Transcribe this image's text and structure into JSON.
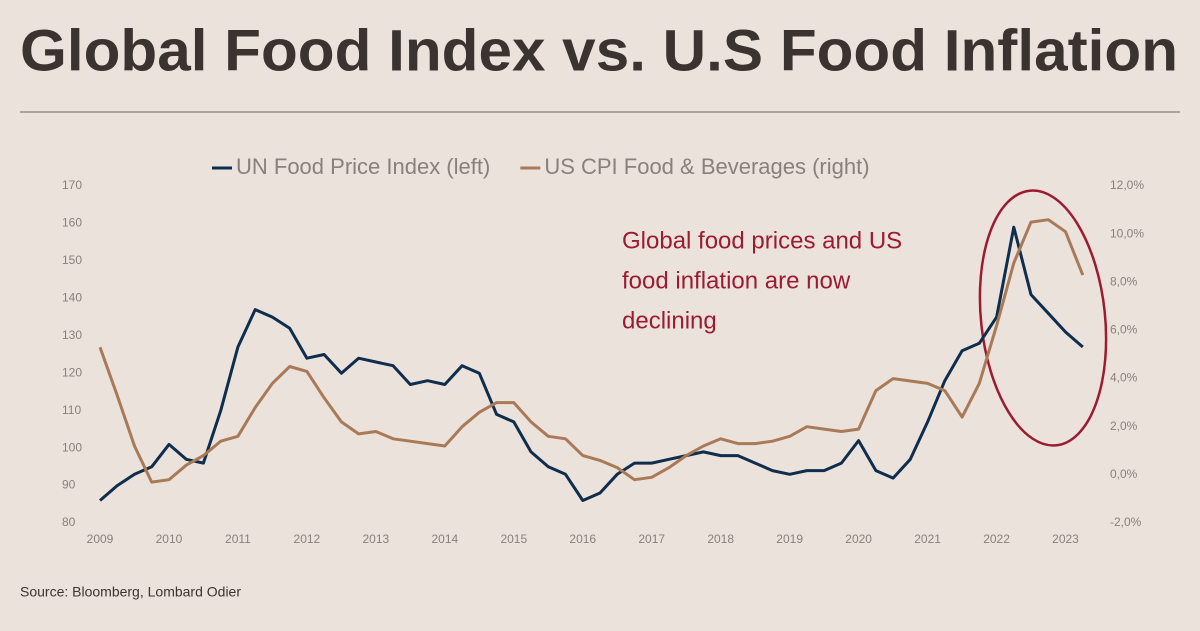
{
  "chart_data": {
    "type": "line",
    "title": "Global Food Index vs. U.S Food Inflation",
    "source": "Source: Bloomberg, Lombard Odier",
    "annotation": [
      "Global food prices and US",
      "food inflation are now",
      "declining"
    ],
    "x": [
      2009,
      2009.25,
      2009.5,
      2009.75,
      2010,
      2010.25,
      2010.5,
      2010.75,
      2011,
      2011.25,
      2011.5,
      2011.75,
      2012,
      2012.25,
      2012.5,
      2012.75,
      2013,
      2013.25,
      2013.5,
      2013.75,
      2014,
      2014.25,
      2014.5,
      2014.75,
      2015,
      2015.25,
      2015.5,
      2015.75,
      2016,
      2016.25,
      2016.5,
      2016.75,
      2017,
      2017.25,
      2017.5,
      2017.75,
      2018,
      2018.25,
      2018.5,
      2018.75,
      2019,
      2019.25,
      2019.5,
      2019.75,
      2020,
      2020.25,
      2020.5,
      2020.75,
      2021,
      2021.25,
      2021.5,
      2021.75,
      2022,
      2022.25,
      2022.5,
      2022.75,
      2023,
      2023.25
    ],
    "xlim": [
      2009,
      2023.5
    ],
    "xticks": [
      2009,
      2010,
      2011,
      2012,
      2013,
      2014,
      2015,
      2016,
      2017,
      2018,
      2019,
      2020,
      2021,
      2022,
      2023
    ],
    "ylim": [
      80,
      170
    ],
    "yticks": [
      80,
      90,
      100,
      110,
      120,
      130,
      140,
      150,
      160,
      170
    ],
    "y2lim": [
      -2,
      12
    ],
    "y2ticks": [
      {
        "value": -2,
        "label": "-2,0%"
      },
      {
        "value": 0,
        "label": "0,0%"
      },
      {
        "value": 2,
        "label": "2,0%"
      },
      {
        "value": 4,
        "label": "4,0%"
      },
      {
        "value": 6,
        "label": "6,0%"
      },
      {
        "value": 8,
        "label": "8,0%"
      },
      {
        "value": 10,
        "label": "10,0%"
      },
      {
        "value": 12,
        "label": "12,0%"
      }
    ],
    "series": [
      {
        "name": "UN Food Price Index (left)",
        "color": "#0f2d4d",
        "values": [
          86,
          90,
          93,
          95,
          101,
          97,
          96,
          110,
          127,
          137,
          135,
          132,
          124,
          125,
          120,
          124,
          123,
          122,
          117,
          118,
          117,
          122,
          120,
          109,
          107,
          99,
          95,
          93,
          86,
          88,
          93,
          96,
          96,
          97,
          98,
          99,
          98,
          98,
          96,
          94,
          93,
          94,
          94,
          96,
          102,
          94,
          92,
          97,
          107,
          118,
          126,
          128,
          135,
          159,
          141,
          136,
          131,
          127
        ]
      },
      {
        "name": "US CPI Food & Beverages (right)",
        "color": "#a87a58",
        "axis": "y2",
        "values": [
          5.3,
          3.3,
          1.2,
          -0.3,
          -0.2,
          0.4,
          0.8,
          1.4,
          1.6,
          2.8,
          3.8,
          4.5,
          4.3,
          3.2,
          2.2,
          1.7,
          1.8,
          1.5,
          1.4,
          1.3,
          1.2,
          2.0,
          2.6,
          3.0,
          3.0,
          2.2,
          1.6,
          1.5,
          0.8,
          0.6,
          0.3,
          -0.2,
          -0.1,
          0.3,
          0.8,
          1.2,
          1.5,
          1.3,
          1.3,
          1.4,
          1.6,
          2.0,
          1.9,
          1.8,
          1.9,
          3.5,
          4.0,
          3.9,
          3.8,
          3.5,
          2.4,
          3.8,
          6.2,
          8.8,
          10.5,
          10.6,
          10.1,
          8.3
        ]
      }
    ]
  }
}
